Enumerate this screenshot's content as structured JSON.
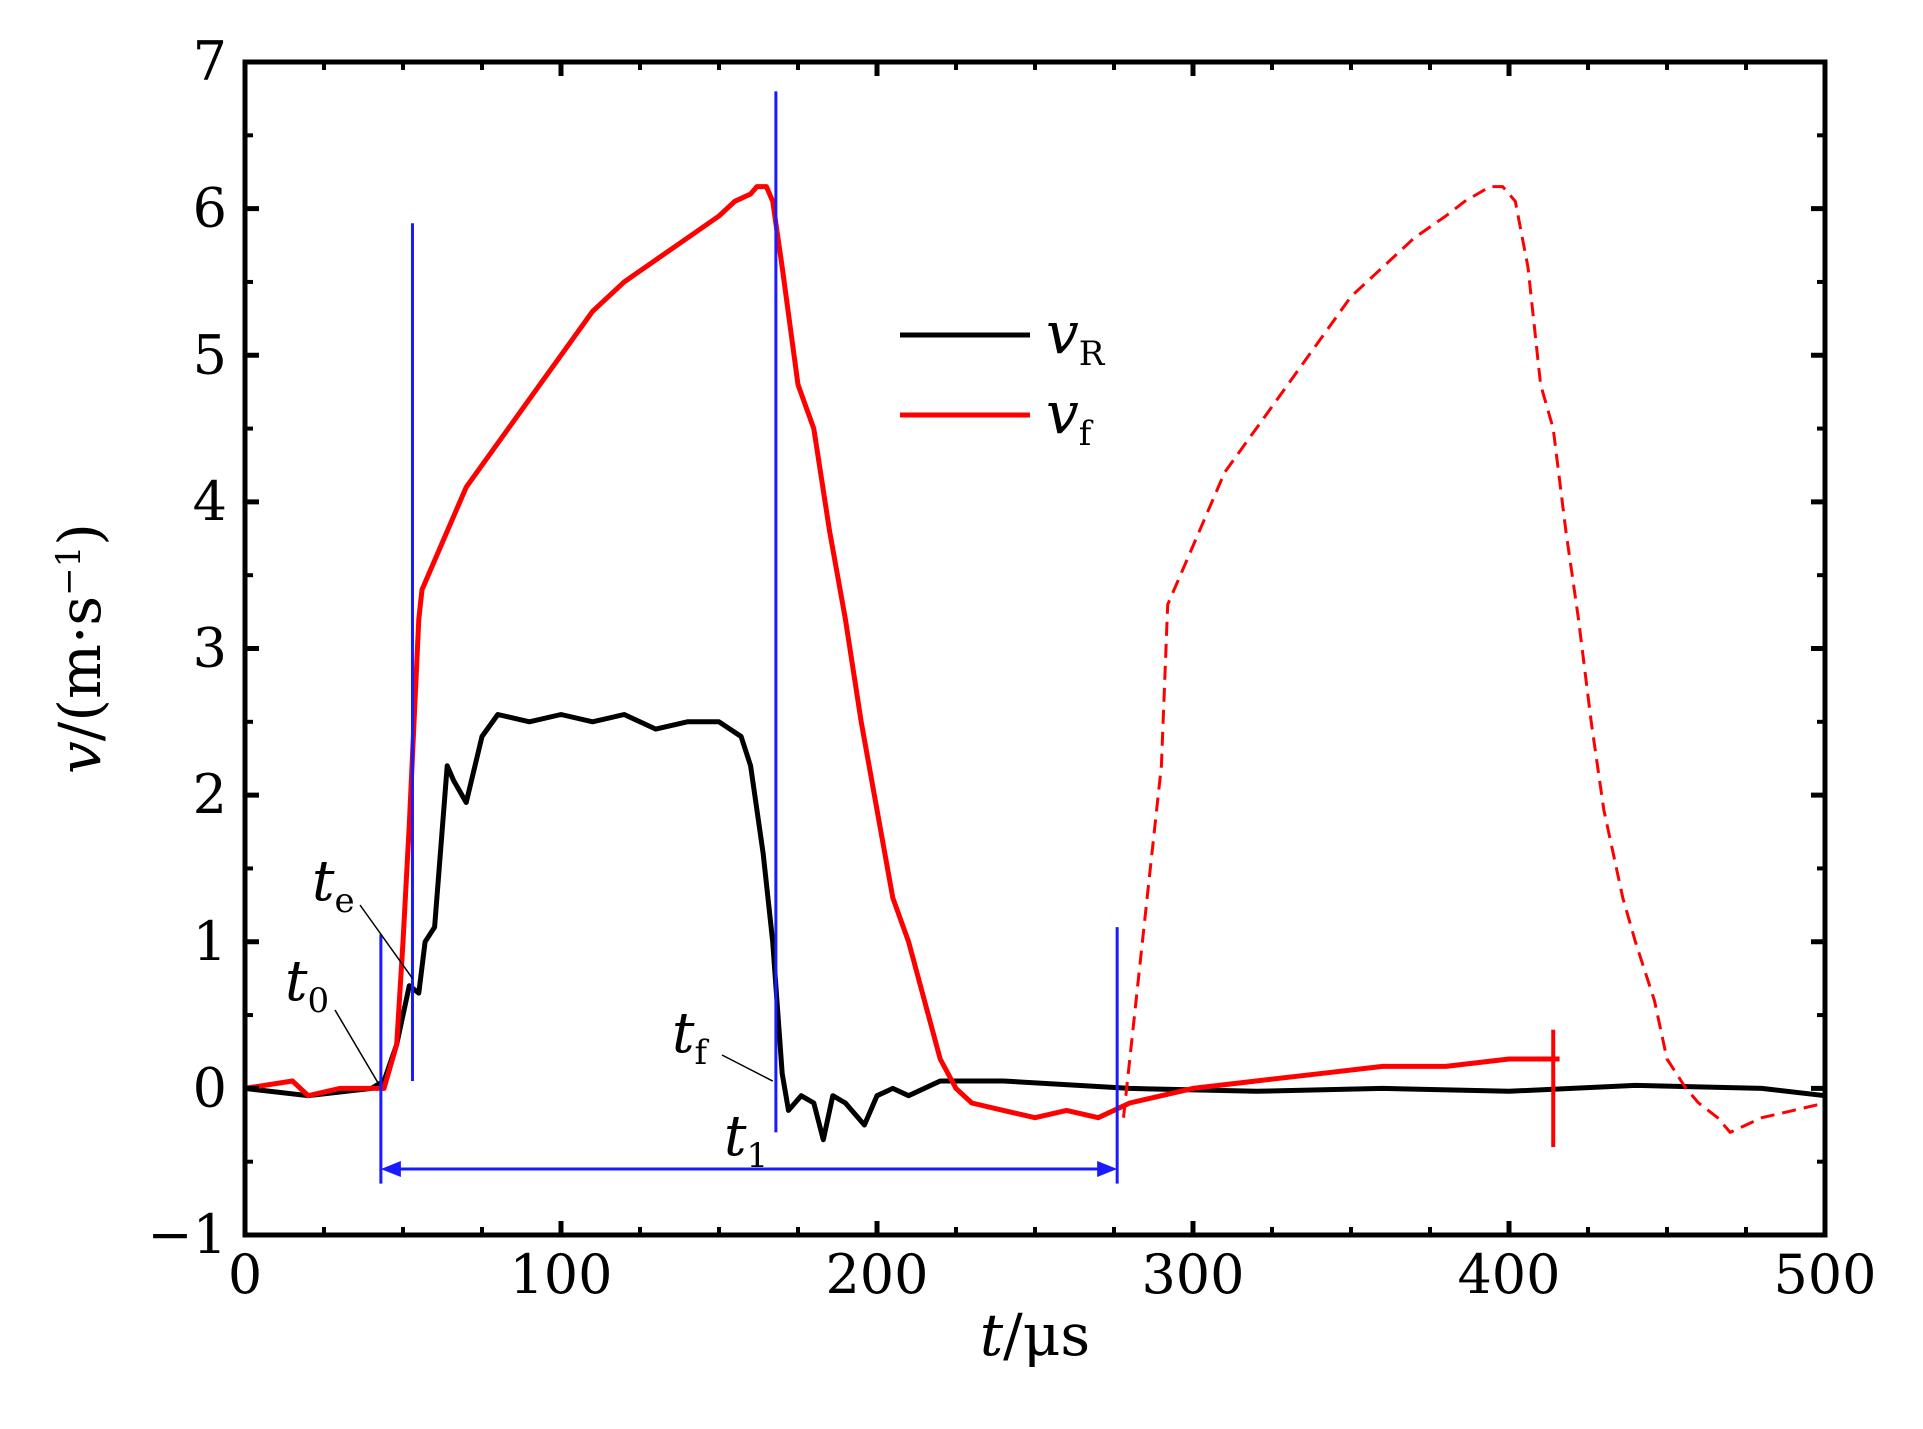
{
  "chart_data": {
    "type": "line",
    "xlabel": {
      "var": "t",
      "unit": "/μs"
    },
    "ylabel": {
      "var": "v",
      "unit": "/(m·s",
      "exp": "−1",
      "close": ")"
    },
    "xlim": [
      0,
      500
    ],
    "ylim": [
      -1,
      7
    ],
    "x_ticks": [
      {
        "value": 0,
        "label": "0"
      },
      {
        "value": 100,
        "label": "100"
      },
      {
        "value": 200,
        "label": "200"
      },
      {
        "value": 300,
        "label": "300"
      },
      {
        "value": 400,
        "label": "400"
      },
      {
        "value": 500,
        "label": "500"
      }
    ],
    "y_ticks": [
      {
        "value": -1,
        "label": "−1"
      },
      {
        "value": 0,
        "label": "0"
      },
      {
        "value": 1,
        "label": "1"
      },
      {
        "value": 2,
        "label": "2"
      },
      {
        "value": 3,
        "label": "3"
      },
      {
        "value": 4,
        "label": "4"
      },
      {
        "value": 5,
        "label": "5"
      },
      {
        "value": 6,
        "label": "6"
      },
      {
        "value": 7,
        "label": "7"
      }
    ],
    "legend": {
      "placement": "upper-center",
      "entries": [
        {
          "var": "v",
          "sub": "R",
          "color": "#000000"
        },
        {
          "var": "v",
          "sub": "f",
          "color": "#ff0000"
        }
      ]
    },
    "series": [
      {
        "id": "vR",
        "color": "#000000",
        "style": "solid",
        "x": [
          0,
          20,
          40,
          44,
          48,
          52,
          55,
          57,
          60,
          64,
          66,
          70,
          75,
          80,
          90,
          100,
          110,
          120,
          130,
          140,
          150,
          157,
          160,
          164,
          167,
          170,
          172,
          176,
          180,
          183,
          186,
          190,
          196,
          200,
          205,
          210,
          220,
          240,
          280,
          320,
          360,
          400,
          440,
          480,
          500
        ],
        "y": [
          0.0,
          -0.05,
          0.0,
          0.05,
          0.3,
          0.7,
          0.65,
          1.0,
          1.1,
          2.2,
          2.1,
          1.95,
          2.4,
          2.55,
          2.5,
          2.55,
          2.5,
          2.55,
          2.45,
          2.5,
          2.5,
          2.4,
          2.2,
          1.6,
          1.0,
          0.1,
          -0.15,
          -0.05,
          -0.1,
          -0.35,
          -0.05,
          -0.1,
          -0.25,
          -0.05,
          0.0,
          -0.05,
          0.05,
          0.05,
          0.0,
          -0.02,
          0.0,
          -0.02,
          0.02,
          0.0,
          -0.05
        ]
      },
      {
        "id": "vf",
        "color": "#ff0000",
        "style": "solid",
        "x": [
          0,
          15,
          20,
          30,
          40,
          44,
          48,
          50,
          52,
          55,
          56,
          60,
          70,
          80,
          90,
          100,
          110,
          120,
          130,
          140,
          150,
          155,
          160,
          162,
          165,
          167,
          170,
          175,
          180,
          185,
          190,
          195,
          200,
          205,
          210,
          215,
          220,
          225,
          230,
          240,
          250,
          260,
          270,
          280,
          300,
          320,
          340,
          360,
          380,
          400,
          410,
          416
        ],
        "y": [
          0.0,
          0.05,
          -0.05,
          0.0,
          0.0,
          0.0,
          0.3,
          1.0,
          1.8,
          3.2,
          3.4,
          3.6,
          4.1,
          4.4,
          4.7,
          5.0,
          5.3,
          5.5,
          5.65,
          5.8,
          5.95,
          6.05,
          6.1,
          6.15,
          6.15,
          6.05,
          5.6,
          4.8,
          4.5,
          3.8,
          3.2,
          2.5,
          1.9,
          1.3,
          1.0,
          0.6,
          0.2,
          0.0,
          -0.1,
          -0.15,
          -0.2,
          -0.15,
          -0.2,
          -0.1,
          0.0,
          0.05,
          0.1,
          0.15,
          0.15,
          0.2,
          0.2,
          0.2
        ]
      },
      {
        "id": "vf-shifted",
        "color": "#ff0000",
        "style": "dashed",
        "x": [
          278,
          284,
          290,
          292,
          296,
          300,
          310,
          320,
          330,
          340,
          350,
          360,
          370,
          380,
          386,
          390,
          394,
          398,
          402,
          406,
          410,
          414,
          418,
          422,
          426,
          430,
          436,
          440,
          446,
          450,
          456,
          460,
          466,
          470,
          480,
          490,
          500
        ],
        "y": [
          -0.2,
          1.0,
          2.2,
          3.3,
          3.5,
          3.7,
          4.2,
          4.5,
          4.8,
          5.1,
          5.4,
          5.6,
          5.8,
          5.95,
          6.05,
          6.1,
          6.15,
          6.15,
          6.05,
          5.6,
          4.8,
          4.5,
          3.8,
          3.2,
          2.5,
          1.9,
          1.3,
          1.0,
          0.6,
          0.2,
          0.0,
          -0.1,
          -0.2,
          -0.3,
          -0.2,
          -0.15,
          -0.1
        ]
      }
    ],
    "annotations": {
      "t0": {
        "var": "t",
        "sub": "0",
        "x": 42,
        "y": 0.0
      },
      "te": {
        "var": "t",
        "sub": "e",
        "x": 53,
        "y": 0.75
      },
      "tf": {
        "var": "t",
        "sub": "f",
        "x": 167,
        "y": 0.05
      },
      "t1": {
        "var": "t",
        "sub": "1",
        "from": 43,
        "to": 276,
        "y": -0.55
      }
    },
    "blue_markers": [
      {
        "x": 43,
        "ymin": -0.65,
        "ymax": 1.05
      },
      {
        "x": 53,
        "ymin": 0.05,
        "ymax": 5.9
      },
      {
        "x": 168,
        "ymin": -0.3,
        "ymax": 6.8
      },
      {
        "x": 276,
        "ymin": -0.65,
        "ymax": 1.1
      }
    ],
    "spike": {
      "x": 414,
      "ymin": -0.4,
      "ymax": 0.4
    }
  }
}
